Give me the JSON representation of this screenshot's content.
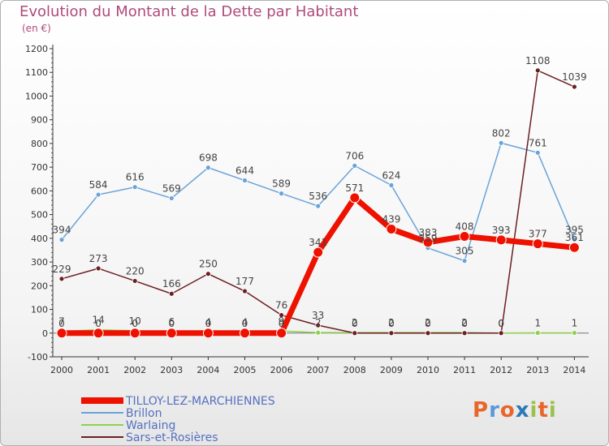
{
  "title": "Evolution du Montant de la Dette par Habitant",
  "subtitle": "(en €)",
  "logo": {
    "letters": [
      "P",
      "r",
      "o",
      "x",
      "i",
      "t",
      "i"
    ],
    "colors": [
      "#e8662a",
      "#5a9ad8",
      "#e8662a",
      "#2a7ab8",
      "#9ac24a",
      "#e8662a",
      "#9ac24a"
    ]
  },
  "chart_data": {
    "type": "line",
    "title": "Evolution du Montant de la Dette par Habitant",
    "subtitle": "(en €)",
    "xlabel": "",
    "ylabel": "",
    "x": [
      "2000",
      "2001",
      "2002",
      "2003",
      "2004",
      "2005",
      "2006",
      "2007",
      "2008",
      "2009",
      "2010",
      "2011",
      "2012",
      "2013",
      "2014"
    ],
    "ylim": [
      -100,
      1200
    ],
    "yticks": [
      "-100",
      "0",
      "100",
      "200",
      "300",
      "400",
      "500",
      "600",
      "700",
      "800",
      "900",
      "1000",
      "1100",
      "1200"
    ],
    "grid": false,
    "legend_position": "bottom-left",
    "series": [
      {
        "name": "TILLOY-LEZ-MARCHIENNES",
        "color": "#ee1100",
        "values": [
          0,
          0,
          0,
          0,
          0,
          0,
          0,
          341,
          571,
          439,
          383,
          408,
          393,
          377,
          361
        ],
        "labels": [
          "0",
          "0",
          "0",
          "0",
          "0",
          "0",
          "0",
          "341",
          "571",
          "439",
          "383",
          "408",
          "393",
          "377",
          "361"
        ]
      },
      {
        "name": "Brillon",
        "color": "#6aa3d8",
        "values": [
          394,
          584,
          616,
          569,
          698,
          644,
          589,
          536,
          706,
          624,
          359,
          305,
          802,
          761,
          395
        ],
        "labels": [
          "394",
          "584",
          "616",
          "569",
          "698",
          "644",
          "589",
          "536",
          "706",
          "624",
          "359",
          "305",
          "802",
          "761",
          "395"
        ]
      },
      {
        "name": "Warlaing",
        "color": "#8fd14f",
        "values": [
          7,
          14,
          10,
          6,
          4,
          4,
          9,
          2,
          2,
          2,
          2,
          2,
          0,
          1,
          1
        ],
        "labels": [
          "7",
          "14",
          "10",
          "6",
          "4",
          "4",
          "9",
          "2",
          "2",
          "2",
          "2",
          "2",
          "0",
          "1",
          "1"
        ]
      },
      {
        "name": "Sars-et-Rosières",
        "color": "#6b1f22",
        "values": [
          229,
          273,
          220,
          166,
          250,
          177,
          76,
          33,
          0,
          0,
          0,
          0,
          0,
          1108,
          1039
        ],
        "labels": [
          "229",
          "273",
          "220",
          "166",
          "250",
          "177",
          "76",
          "33",
          "0",
          "0",
          "0",
          "0",
          "0",
          "1108",
          "1039"
        ]
      }
    ]
  }
}
